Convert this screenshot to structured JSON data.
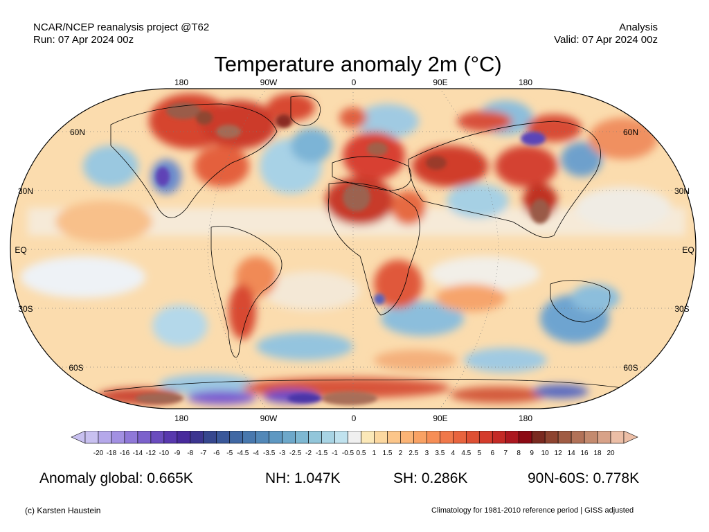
{
  "header": {
    "source": "NCAR/NCEP reanalysis project @T62",
    "run": "Run: 07 Apr 2024 00z",
    "type": "Analysis",
    "valid": "Valid: 07 Apr 2024 00z"
  },
  "title": "Temperature anomaly 2m (°C)",
  "map": {
    "lon_labels": [
      "180",
      "90W",
      "0",
      "90E",
      "180"
    ],
    "lat_labels": [
      "60N",
      "30N",
      "EQ",
      "30S",
      "60S"
    ]
  },
  "colorbar": {
    "labels": [
      "-20",
      "-18",
      "-16",
      "-14",
      "-12",
      "-10",
      "-9",
      "-8",
      "-7",
      "-6",
      "-5",
      "-4.5",
      "-4",
      "-3.5",
      "-3",
      "-2.5",
      "-2",
      "-1.5",
      "-1",
      "-0.5",
      "0.5",
      "1",
      "1.5",
      "2",
      "2.5",
      "3",
      "3.5",
      "4",
      "4.5",
      "5",
      "6",
      "7",
      "8",
      "9",
      "10",
      "12",
      "14",
      "16",
      "18",
      "20"
    ],
    "colors": [
      "#c8c0f0",
      "#b5a8ea",
      "#a290e2",
      "#8f78d8",
      "#7c62cc",
      "#6a4cbe",
      "#5838ae",
      "#482a9c",
      "#3c3590",
      "#36478f",
      "#3a589a",
      "#4068a4",
      "#4878ae",
      "#5288b8",
      "#5e98c2",
      "#6da8ca",
      "#7eb8d2",
      "#92c6da",
      "#a8d4e4",
      "#c0e2ee",
      "#f0f0f0",
      "#fbe8b8",
      "#fcd8a0",
      "#fcc68a",
      "#fbb476",
      "#f9a264",
      "#f68e56",
      "#f0784a",
      "#e8643e",
      "#de5034",
      "#d43c2c",
      "#c42a26",
      "#ac1820",
      "#8c0a14",
      "#7a2a20",
      "#8e4430",
      "#a05c44",
      "#b27258",
      "#c48a6e",
      "#d8a288",
      "#ecbea6"
    ]
  },
  "stats": {
    "global": "Anomaly global: 0.665K",
    "nh": "NH: 1.047K",
    "sh": "SH: 0.286K",
    "polar": "90N-60S: 0.778K"
  },
  "credits": {
    "author": "(c) Karsten Haustein",
    "note": "Climatology for 1981-2010 reference period | GISS adjusted"
  }
}
